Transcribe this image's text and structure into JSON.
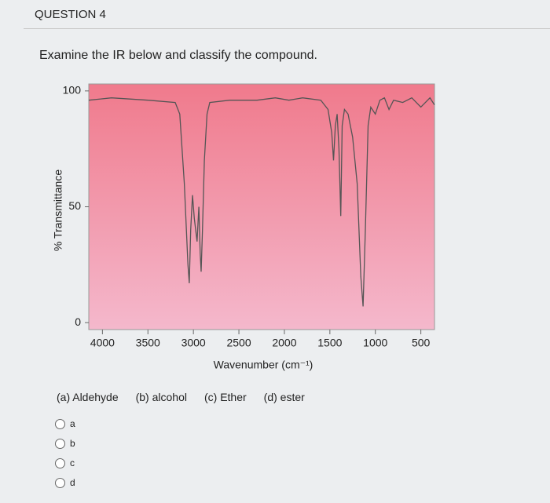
{
  "header": {
    "title": "QUESTION 4"
  },
  "question": {
    "prompt": "Examine the IR below and classify the compound.",
    "options_text": [
      "(a) Aldehyde",
      "(b) alcohol",
      "(c) Ether",
      "(d) ester"
    ],
    "choices": [
      "a",
      "b",
      "c",
      "d"
    ]
  },
  "chart_data": {
    "type": "line",
    "x_label": "Wavenumber (cm⁻¹)",
    "y_label": "% Transmittance",
    "x": [
      4150,
      3900,
      3500,
      3200,
      3150,
      3100,
      3060,
      3045,
      3030,
      3010,
      2990,
      2960,
      2940,
      2925,
      2915,
      2900,
      2880,
      2850,
      2820,
      2600,
      2300,
      2100,
      1950,
      1800,
      1600,
      1520,
      1480,
      1460,
      1440,
      1420,
      1400,
      1380,
      1365,
      1340,
      1300,
      1250,
      1200,
      1160,
      1135,
      1110,
      1080,
      1050,
      1000,
      950,
      900,
      850,
      800,
      700,
      600,
      500,
      400,
      350
    ],
    "values": [
      96,
      97,
      96,
      95,
      90,
      60,
      25,
      17,
      40,
      55,
      45,
      35,
      50,
      30,
      22,
      40,
      70,
      90,
      95,
      96,
      96,
      97,
      96,
      97,
      96,
      92,
      82,
      70,
      85,
      90,
      75,
      46,
      85,
      92,
      90,
      80,
      60,
      20,
      7,
      40,
      85,
      93,
      90,
      96,
      97,
      92,
      96,
      95,
      97,
      93,
      97,
      94
    ],
    "color": "#555555",
    "xlim": [
      4150,
      350
    ],
    "ylim": [
      -3,
      103
    ],
    "xticks": [
      4000,
      3500,
      3000,
      2500,
      2000,
      1500,
      1000,
      500
    ],
    "yticks": [
      0,
      50,
      100
    ]
  }
}
